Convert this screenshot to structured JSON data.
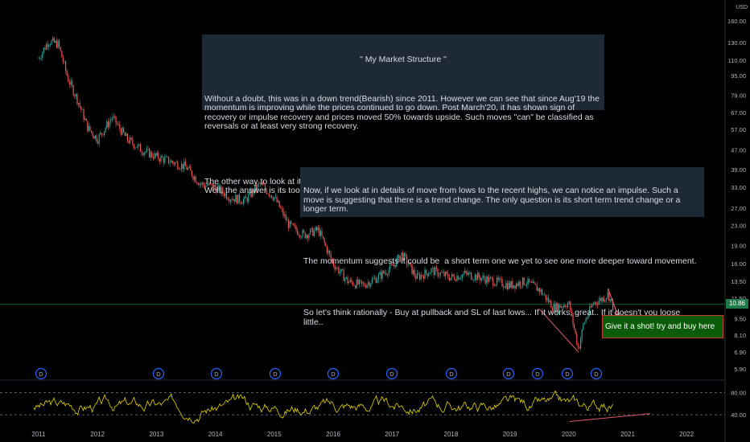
{
  "chart_data": {
    "type": "line",
    "main_panel": {
      "series": "candlestick",
      "y_axis_scale": "log",
      "y_axis_unit": "USD",
      "y_ticks": [
        160.0,
        130.0,
        110.0,
        95.0,
        79.0,
        67.0,
        57.0,
        47.0,
        39.0,
        33.0,
        27.0,
        23.0,
        19.0,
        16.0,
        13.5,
        11.5,
        9.5,
        8.1,
        6.9,
        5.9
      ],
      "y_range": [
        5.5,
        175
      ],
      "x_ticks": [
        "2011",
        "2012",
        "2013",
        "2014",
        "2015",
        "2016",
        "2017",
        "2018",
        "2019",
        "2020",
        "2021",
        "2022"
      ],
      "last_price": "10.86",
      "x": [
        "2011-01",
        "2011-03",
        "2011-05",
        "2011-07",
        "2011-09",
        "2011-11",
        "2012-01",
        "2012-04",
        "2012-07",
        "2012-10",
        "2013-01",
        "2013-04",
        "2013-07",
        "2013-10",
        "2014-01",
        "2014-04",
        "2014-07",
        "2014-10",
        "2015-01",
        "2015-04",
        "2015-07",
        "2015-10",
        "2016-01",
        "2016-04",
        "2016-07",
        "2016-10",
        "2017-01",
        "2017-03",
        "2017-06",
        "2017-09",
        "2018-01",
        "2018-04",
        "2018-07",
        "2018-10",
        "2019-01",
        "2019-04",
        "2019-07",
        "2019-10",
        "2020-01",
        "2020-03",
        "2020-04",
        "2020-06",
        "2020-08",
        "2020-09",
        "2020-10"
      ],
      "close": [
        112,
        132,
        128,
        92,
        75,
        58,
        52,
        64,
        52,
        47,
        44,
        42,
        40,
        34,
        33,
        30,
        29,
        34,
        30,
        23,
        21,
        22,
        16,
        13.5,
        13,
        14,
        15.5,
        17.5,
        14,
        15,
        14,
        14.5,
        14,
        13.5,
        13,
        13.5,
        12.5,
        10.5,
        11,
        7.1,
        9,
        11,
        11.5,
        12,
        10.6
      ]
    },
    "indicator_panel": {
      "series": "oscillator",
      "y_ticks": [
        80.0,
        40.0
      ],
      "levels": [
        80,
        40
      ]
    },
    "dividend_markers": [
      "D",
      "D",
      "D",
      "D",
      "D",
      "D",
      "D",
      "D",
      "D",
      "D",
      "D"
    ],
    "annotations": {
      "structure_title": "\" My Market Structure \"",
      "structure_paragraphs": [
        "Without a doubt, this was in a down trend(Bearish) since 2011. However we can see that since Aug'19 the momentum is improving while the prices continued to go down. Post March'20, it has shown sign of recovery or impulse recovery and prices moved 50% towards upside. Such moves \"can\" be classified as reversals or at least very strong recovery.",
        "The other way to look at it is \" Start of a bull market?\"\nWell, the answer is its too early to call."
      ],
      "impulse_paragraphs": [
        "Now, if we look at in details of move from lows to the recent highs, we can notice an impulse. Such a move is suggesting that there is a trend change. The only question is its short term trend change or a longer term.",
        "The momentum suggests it could be  a short term one we yet to see one more deeper toward movement.",
        "So let's think rationally - Buy at pullback and SL of last lows... If it works, great.. If it doesn't you loose little.."
      ],
      "trade_note": "Give it a shot! try and buy here"
    },
    "colors": {
      "up": "#26a69a",
      "down": "#ef5350",
      "oscillator": "#e6d700",
      "trendline": "#e05a6a",
      "price_line": "#1f7a48"
    }
  }
}
